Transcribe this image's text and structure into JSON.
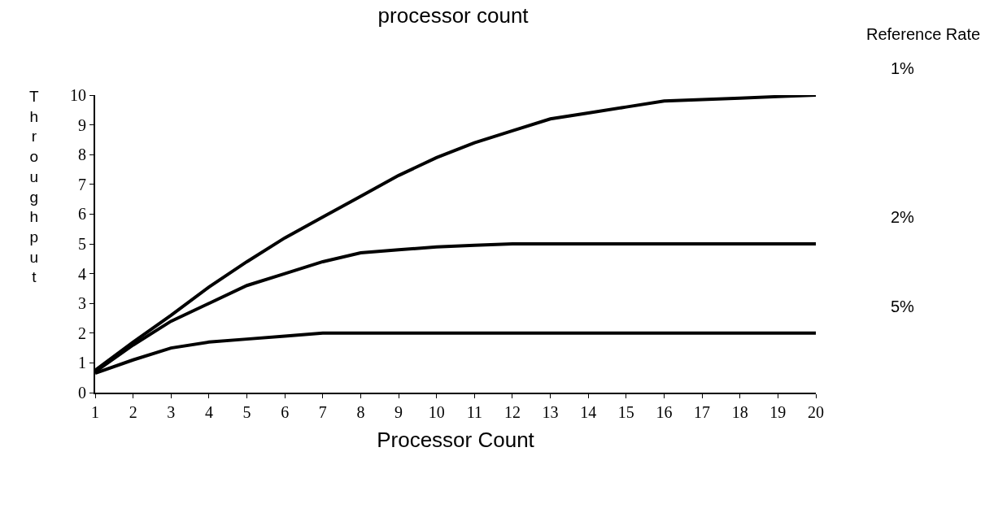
{
  "chart_data": {
    "type": "line",
    "title": "processor count",
    "xlabel": "Processor Count",
    "ylabel": "Throughput",
    "legend_title": "Reference Rate",
    "x": [
      1,
      2,
      3,
      4,
      5,
      6,
      7,
      8,
      9,
      10,
      11,
      12,
      13,
      14,
      15,
      16,
      17,
      18,
      19,
      20
    ],
    "series": [
      {
        "name": "1%",
        "color": "#000000",
        "values": [
          0.75,
          1.7,
          2.6,
          3.55,
          4.4,
          5.2,
          5.9,
          6.6,
          7.3,
          7.9,
          8.4,
          8.8,
          9.2,
          9.4,
          9.6,
          9.8,
          9.85,
          9.9,
          9.95,
          10
        ]
      },
      {
        "name": "2%",
        "color": "#000000",
        "values": [
          0.7,
          1.6,
          2.4,
          3.0,
          3.6,
          4.0,
          4.4,
          4.7,
          4.8,
          4.9,
          4.95,
          5,
          5,
          5,
          5,
          5,
          5,
          5,
          5,
          5
        ]
      },
      {
        "name": "5%",
        "color": "#000000",
        "values": [
          0.65,
          1.1,
          1.5,
          1.7,
          1.8,
          1.9,
          2,
          2,
          2,
          2,
          2,
          2,
          2,
          2,
          2,
          2,
          2,
          2,
          2,
          2
        ]
      }
    ],
    "xlim": [
      1,
      20
    ],
    "xticks": [
      1,
      2,
      3,
      4,
      5,
      6,
      7,
      8,
      9,
      10,
      11,
      12,
      13,
      14,
      15,
      16,
      17,
      18,
      19,
      20
    ],
    "ylim": [
      0,
      10
    ],
    "yticks": [
      0,
      1,
      2,
      3,
      4,
      5,
      6,
      7,
      8,
      9,
      10
    ],
    "legend": "right",
    "marker": "none",
    "line_style": "solid"
  }
}
